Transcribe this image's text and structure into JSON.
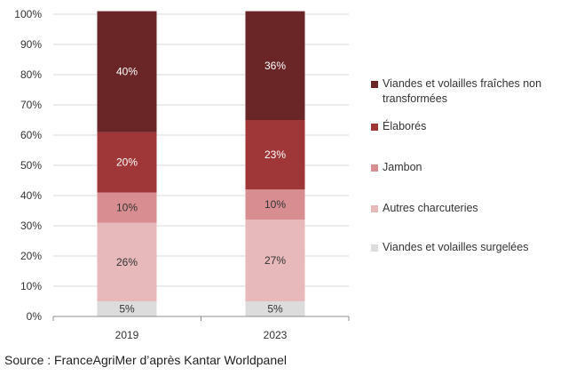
{
  "chart_data": {
    "type": "bar",
    "stacked": true,
    "categories": [
      "2019",
      "2023"
    ],
    "series": [
      {
        "name": "Viandes et volailles surgelées",
        "color": "#dcdcdc",
        "values": [
          5,
          5
        ],
        "labels": [
          "5%",
          "5%"
        ]
      },
      {
        "name": "Autres charcuteries",
        "color": "#e8b9bb",
        "values": [
          26,
          27
        ],
        "labels": [
          "26%",
          "27%"
        ]
      },
      {
        "name": "Jambon",
        "color": "#d88e91",
        "values": [
          10,
          10
        ],
        "labels": [
          "10%",
          "10%"
        ]
      },
      {
        "name": "Élaborés",
        "color": "#9f3637",
        "values": [
          20,
          23
        ],
        "labels": [
          "20%",
          "23%"
        ]
      },
      {
        "name": "Viandes et volailles fraîches non transformées",
        "color": "#6a2527",
        "values": [
          40,
          36
        ],
        "labels": [
          "40%",
          "36%"
        ]
      }
    ],
    "y_ticks": [
      "0%",
      "10%",
      "20%",
      "30%",
      "40%",
      "50%",
      "60%",
      "70%",
      "80%",
      "90%",
      "100%"
    ],
    "ylim": [
      0,
      100
    ],
    "grid": true,
    "legend_position": "right",
    "legend_order": [
      4,
      3,
      2,
      1,
      0
    ]
  },
  "source": "Source : FranceAgriMer d’après Kantar Worldpanel"
}
